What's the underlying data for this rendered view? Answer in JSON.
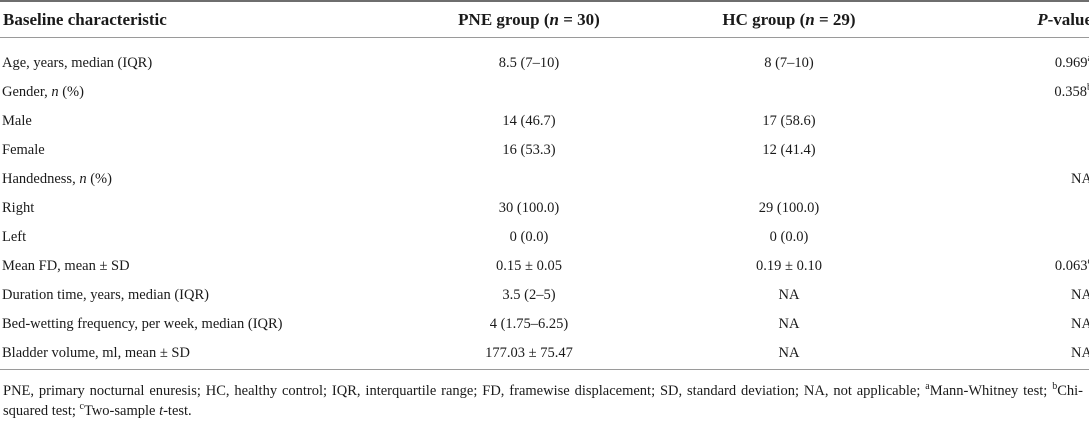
{
  "table": {
    "headers": {
      "col1": "Baseline characteristic",
      "col2_main": "PNE group (",
      "col2_n": "n",
      "col2_rest": " = 30)",
      "col3_main": "HC group (",
      "col3_n": "n",
      "col3_rest": " = 29)",
      "col4_p": "P",
      "col4_rest": "-value"
    },
    "rows": [
      {
        "label": "Age, years, median (IQR)",
        "pne": "8.5 (7–10)",
        "hc": "8 (7–10)",
        "p": "0.969",
        "p_sup": "a"
      },
      {
        "label_pre": "Gender, ",
        "label_italic": "n",
        "label_post": " (%)",
        "pne": "",
        "hc": "",
        "p": "0.358",
        "p_sup": "b"
      },
      {
        "label": "Male",
        "pne": "14 (46.7)",
        "hc": "17 (58.6)",
        "p": ""
      },
      {
        "label": "Female",
        "pne": "16 (53.3)",
        "hc": "12 (41.4)",
        "p": ""
      },
      {
        "label_pre": "Handedness, ",
        "label_italic": "n",
        "label_post": " (%)",
        "pne": "",
        "hc": "",
        "p": "NA"
      },
      {
        "label": "Right",
        "pne": "30 (100.0)",
        "hc": "29 (100.0)",
        "p": ""
      },
      {
        "label": "Left",
        "pne": "0 (0.0)",
        "hc": "0 (0.0)",
        "p": ""
      },
      {
        "label": "Mean FD, mean ± SD",
        "pne": "0.15 ± 0.05",
        "hc": "0.19 ± 0.10",
        "p": "0.063",
        "p_sup": "c"
      },
      {
        "label": "Duration time, years, median (IQR)",
        "pne": "3.5 (2–5)",
        "hc": "NA",
        "p": "NA"
      },
      {
        "label": "Bed-wetting frequency, per week, median (IQR)",
        "pne": "4 (1.75–6.25)",
        "hc": "NA",
        "p": "NA"
      },
      {
        "label": "Bladder volume, ml, mean ± SD",
        "pne": "177.03 ± 75.47",
        "hc": "NA",
        "p": "NA"
      }
    ]
  },
  "footnote": {
    "main": "PNE, primary nocturnal enuresis; HC, healthy control; IQR, interquartile range; FD, framewise displacement; SD, standard deviation; NA, not applicable; ",
    "sup_a": "a",
    "a_text": "Mann-Whitney test; ",
    "sup_b": "b",
    "b_text": "Chi-squared test; ",
    "sup_c": "c",
    "c_text_pre": "Two-sample ",
    "c_text_italic": "t",
    "c_text_post": "-test."
  }
}
